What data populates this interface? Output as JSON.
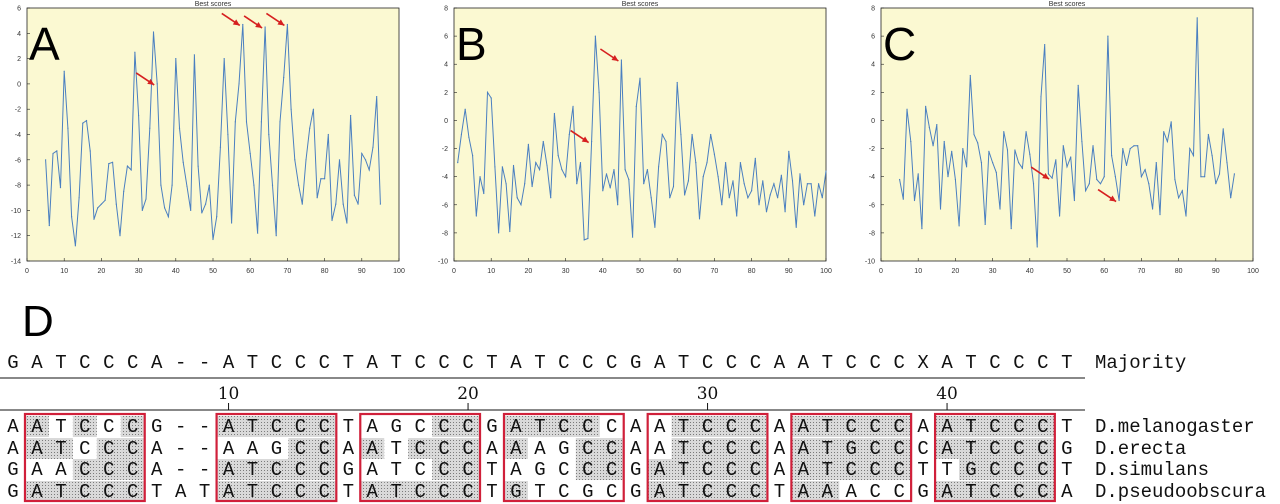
{
  "chart_data": [
    {
      "type": "line",
      "panel": "A",
      "title": "Best scores",
      "xlim": [
        0,
        100
      ],
      "ylim": [
        -14,
        6
      ],
      "xticks": [
        0,
        10,
        20,
        30,
        40,
        50,
        60,
        70,
        80,
        90,
        100
      ],
      "yticks": [
        -14,
        -12,
        -10,
        -8,
        -6,
        -4,
        -2,
        0,
        2,
        4,
        6
      ],
      "grid": false,
      "line_color": "#4a7fc0",
      "arrow_color": "#d62020",
      "background": "#fbf9d2",
      "arrows_at_x": [
        35,
        58,
        64,
        70
      ],
      "x": [
        5,
        6,
        7,
        8,
        9,
        10,
        11,
        12,
        13,
        14,
        15,
        16,
        17,
        18,
        19,
        20,
        21,
        22,
        23,
        24,
        25,
        26,
        27,
        28,
        29,
        30,
        31,
        32,
        33,
        34,
        35,
        36,
        37,
        38,
        39,
        40,
        41,
        42,
        43,
        44,
        45,
        46,
        47,
        48,
        49,
        50,
        51,
        52,
        53,
        54,
        55,
        56,
        57,
        58,
        59,
        60,
        61,
        62,
        63,
        64,
        65,
        66,
        67,
        68,
        69,
        70,
        71,
        72,
        73,
        74,
        75,
        76,
        77,
        78,
        79,
        80,
        81,
        82,
        83,
        84,
        85,
        86,
        87,
        88,
        89,
        90,
        91,
        92,
        93,
        94,
        95
      ],
      "y": [
        -6,
        -11.2,
        -5.5,
        -5.3,
        -8.2,
        1,
        -3.5,
        -10.5,
        -12.8,
        -9,
        -3.1,
        -2.9,
        -5.3,
        -10.7,
        -9.8,
        -9.5,
        -9.2,
        -6.3,
        -6.2,
        -9.5,
        -12,
        -8.5,
        -6.5,
        -6.8,
        2.5,
        -2.5,
        -10,
        -9.1,
        -3.5,
        4.1,
        0,
        -8,
        -9.8,
        -10.5,
        -8,
        2,
        -3.5,
        -6.2,
        -8.1,
        -10,
        2.3,
        -6.5,
        -10.2,
        -9.5,
        -8,
        -12.3,
        -10.5,
        -5,
        2,
        -4,
        -11,
        -3,
        0,
        4.7,
        -3,
        -5.5,
        -8,
        -11.8,
        -3,
        4.5,
        -4,
        -8,
        -12,
        -3,
        0.5,
        4.7,
        -2,
        -6,
        -8,
        -9.5,
        -6,
        -3.5,
        -2,
        -9,
        -7.5,
        -7.5,
        -4,
        -10.8,
        -9.5,
        -6,
        -9.5,
        -11,
        -2.5,
        -8.8,
        -9.5,
        -5.5,
        -6,
        -6.8,
        -5,
        -1,
        -9.5
      ]
    },
    {
      "type": "line",
      "panel": "B",
      "title": "Best scores",
      "xlim": [
        0,
        100
      ],
      "ylim": [
        -10,
        8
      ],
      "xticks": [
        0,
        10,
        20,
        30,
        40,
        50,
        60,
        70,
        80,
        90,
        100
      ],
      "yticks": [
        -10,
        -8,
        -6,
        -4,
        -2,
        0,
        2,
        4,
        6,
        8
      ],
      "grid": false,
      "line_color": "#4a7fc0",
      "arrow_color": "#d62020",
      "background": "#fbf9d2",
      "arrows_at_x": [
        37,
        45
      ],
      "x": [
        1,
        2,
        3,
        4,
        5,
        6,
        7,
        8,
        9,
        10,
        11,
        12,
        13,
        14,
        15,
        16,
        17,
        18,
        19,
        20,
        21,
        22,
        23,
        24,
        25,
        26,
        27,
        28,
        29,
        30,
        31,
        32,
        33,
        34,
        35,
        36,
        37,
        38,
        39,
        40,
        41,
        42,
        43,
        44,
        45,
        46,
        47,
        48,
        49,
        50,
        51,
        52,
        53,
        54,
        55,
        56,
        57,
        58,
        59,
        60,
        61,
        62,
        63,
        64,
        65,
        66,
        67,
        68,
        69,
        70,
        71,
        72,
        73,
        74,
        75,
        76,
        77,
        78,
        79,
        80,
        81,
        82,
        83,
        84,
        85,
        86,
        87,
        88,
        89,
        90,
        91,
        92,
        93,
        94,
        95,
        96,
        97,
        98,
        99,
        100
      ],
      "y": [
        -3,
        -1,
        0.8,
        -1.2,
        -2.5,
        -6.8,
        -4,
        -5.2,
        2,
        1.6,
        -3.3,
        -8,
        -3.3,
        -4.5,
        -7.9,
        -3.2,
        -5.5,
        -6,
        -4.5,
        -1.7,
        -4.7,
        -3,
        -3.5,
        -1.5,
        -3.2,
        -5.5,
        0.5,
        -2.5,
        -3.5,
        -4,
        -1,
        1,
        -4.5,
        -3,
        -8.5,
        -8.4,
        -1.5,
        6,
        2,
        -5,
        -3.8,
        -4.8,
        -3.5,
        -6,
        4.3,
        -3.5,
        -4.2,
        -8.3,
        1,
        3,
        -4.5,
        -3.5,
        -5.5,
        -7.6,
        -3.3,
        -1,
        -1.5,
        -5.5,
        -4.7,
        2.7,
        -1,
        -5.3,
        -4.3,
        -1,
        -3,
        -7,
        -4,
        -3,
        -1,
        -2.4,
        -4,
        -6,
        -3,
        -5.5,
        -4.3,
        -6.8,
        -3,
        -4.5,
        -5.5,
        -5,
        -2.7,
        -6,
        -4.3,
        -6.5,
        -5.3,
        -4.5,
        -5.5,
        -3.9,
        -6.5,
        -2.2,
        -4.3,
        -7.6,
        -3.8,
        -6,
        -4.5,
        -4.5,
        -6.8,
        -4.5,
        -5.5,
        -3.6
      ]
    },
    {
      "type": "line",
      "panel": "C",
      "title": "Best scores",
      "xlim": [
        0,
        100
      ],
      "ylim": [
        -10,
        8
      ],
      "xticks": [
        0,
        10,
        20,
        30,
        40,
        50,
        60,
        70,
        80,
        90,
        100
      ],
      "yticks": [
        -10,
        -8,
        -6,
        -4,
        -2,
        0,
        2,
        4,
        6,
        8
      ],
      "grid": false,
      "line_color": "#4a7fc0",
      "arrow_color": "#d62020",
      "background": "#fbf9d2",
      "arrows_at_x": [
        46,
        64
      ],
      "x": [
        5,
        6,
        7,
        8,
        9,
        10,
        11,
        12,
        13,
        14,
        15,
        16,
        17,
        18,
        19,
        20,
        21,
        22,
        23,
        24,
        25,
        26,
        27,
        28,
        29,
        30,
        31,
        32,
        33,
        34,
        35,
        36,
        37,
        38,
        39,
        40,
        41,
        42,
        43,
        44,
        45,
        46,
        47,
        48,
        49,
        50,
        51,
        52,
        53,
        54,
        55,
        56,
        57,
        58,
        59,
        60,
        61,
        62,
        63,
        64,
        65,
        66,
        67,
        68,
        69,
        70,
        71,
        72,
        73,
        74,
        75,
        76,
        77,
        78,
        79,
        80,
        81,
        82,
        83,
        84,
        85,
        86,
        87,
        88,
        89,
        90,
        91,
        92,
        93,
        94,
        95
      ],
      "y": [
        -4.2,
        -5.6,
        0.8,
        -1.5,
        -5.7,
        -3.8,
        -7.7,
        1,
        -0.5,
        -1.8,
        -0.3,
        -6.3,
        -1.5,
        -4,
        -2.2,
        -4.2,
        -7.5,
        -2,
        -3.3,
        3.2,
        -1,
        -1.6,
        -3,
        -7.4,
        -2.2,
        -3,
        -3.7,
        -6.3,
        -0.8,
        -2.1,
        -7.7,
        -2.1,
        -3,
        -3.4,
        -0.8,
        -2.4,
        -4.5,
        -9,
        1.7,
        5.4,
        -3.8,
        -4.1,
        -2.8,
        -6.8,
        -1.8,
        -3.3,
        -2.6,
        -5.7,
        2.5,
        -1.5,
        -5,
        -4.5,
        -1.8,
        -4.2,
        -4.5,
        -4,
        6,
        -2.5,
        -4,
        -5.7,
        -2,
        -3.2,
        -2,
        -1.8,
        -1.8,
        -4,
        -3.5,
        -4.5,
        -6.3,
        -3,
        -6.7,
        -0.8,
        -1.5,
        -0.1,
        -4.2,
        -5.5,
        -5,
        -6.8,
        -2,
        -2.5,
        7.3,
        -4,
        -4,
        -1,
        -2.5,
        -4.5,
        -3.8,
        -0.6,
        -3,
        -5.5,
        -3.8
      ]
    }
  ],
  "alignment": {
    "panel": "D",
    "majority_seq": "GATCCCA--ATCCCTATCCCTATCCCGATCCCAATCCCXATCCCT",
    "majority_label": "Majority",
    "ruler_numbers": [
      "10",
      "20",
      "30",
      "40"
    ],
    "ruler_positions": [
      10,
      20,
      30,
      40
    ],
    "rows": [
      {
        "label": "D.melanogaster",
        "seq": "AATCCCG--ATCCCTAGCCCGATCCCAATCCCAATCCCAATCCCT"
      },
      {
        "label": "D.erecta",
        "seq": "AATCCCA--AAGCCAATCCCAAAGCCAATCCCAATGCCCATCCCG"
      },
      {
        "label": "D.simulans",
        "seq": "GAACCCA--ATCCCGATCCCTAGCCCGATCCCAATCCCTTGCCCT"
      },
      {
        "label": "D.pseudoobscura",
        "seq": "GATCCCTATATCCCTATCCCTGTCGCGATCCCTAAACCGATCCCA"
      }
    ],
    "box_starts": [
      2,
      10,
      16,
      22,
      28,
      34,
      40
    ],
    "box_length": 5,
    "box_color": "#d0203a",
    "shade_color": "#c8c8c8",
    "unshaded_cells": [
      [
        3,
        5,
        16,
        17,
        18,
        26,
        27,
        28
      ],
      [
        4,
        10,
        11,
        12,
        17,
        23,
        24,
        28
      ],
      [
        2,
        3,
        16,
        17,
        18,
        22,
        23,
        24,
        39,
        40
      ],
      [
        23,
        24,
        25,
        26,
        36,
        37,
        38
      ]
    ]
  }
}
